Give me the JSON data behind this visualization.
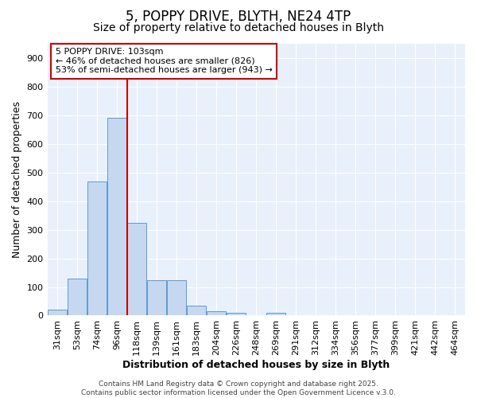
{
  "title_line1": "5, POPPY DRIVE, BLYTH, NE24 4TP",
  "title_line2": "Size of property relative to detached houses in Blyth",
  "xlabel": "Distribution of detached houses by size in Blyth",
  "ylabel": "Number of detached properties",
  "bar_labels": [
    "31sqm",
    "53sqm",
    "74sqm",
    "96sqm",
    "118sqm",
    "139sqm",
    "161sqm",
    "183sqm",
    "204sqm",
    "226sqm",
    "248sqm",
    "269sqm",
    "291sqm",
    "312sqm",
    "334sqm",
    "356sqm",
    "377sqm",
    "399sqm",
    "421sqm",
    "442sqm",
    "464sqm"
  ],
  "bar_values": [
    20,
    130,
    470,
    690,
    325,
    125,
    125,
    35,
    15,
    10,
    0,
    10,
    0,
    0,
    0,
    0,
    0,
    0,
    0,
    0,
    0
  ],
  "bar_color": "#c5d8f0",
  "bar_edge_color": "#5b9bd5",
  "background_color": "#ffffff",
  "plot_bg_color": "#e8f0fb",
  "grid_color": "#ffffff",
  "vline_x": 3.5,
  "vline_color": "#cc0000",
  "ylim": [
    0,
    950
  ],
  "yticks": [
    0,
    100,
    200,
    300,
    400,
    500,
    600,
    700,
    800,
    900
  ],
  "annotation_text": "5 POPPY DRIVE: 103sqm\n← 46% of detached houses are smaller (826)\n53% of semi-detached houses are larger (943) →",
  "annotation_box_color": "#ffffff",
  "annotation_border_color": "#cc0000",
  "footer_text": "Contains HM Land Registry data © Crown copyright and database right 2025.\nContains public sector information licensed under the Open Government Licence v.3.0.",
  "title1_fontsize": 12,
  "title2_fontsize": 10,
  "axis_label_fontsize": 9,
  "tick_fontsize": 8,
  "annotation_fontsize": 8,
  "footer_fontsize": 6.5
}
